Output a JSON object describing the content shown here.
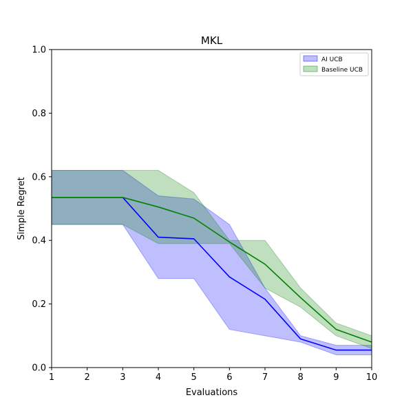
{
  "chart_data": {
    "type": "area",
    "title": "MKL",
    "xlabel": "Evaluations",
    "ylabel": "Simple Regret",
    "xlim": [
      1,
      10
    ],
    "ylim": [
      0,
      1.0
    ],
    "x": [
      1,
      2,
      3,
      4,
      5,
      6,
      7,
      8,
      9,
      10
    ],
    "xticks": [
      "1",
      "2",
      "3",
      "4",
      "5",
      "6",
      "7",
      "8",
      "9",
      "10"
    ],
    "yticks": [
      {
        "value": 0.0,
        "label": "0.0"
      },
      {
        "value": 0.2,
        "label": "0.2"
      },
      {
        "value": 0.4,
        "label": "0.4"
      },
      {
        "value": 0.6,
        "label": "0.6"
      },
      {
        "value": 0.8,
        "label": "0.8"
      },
      {
        "value": 1.0,
        "label": "1.0"
      }
    ],
    "grid": false,
    "legend_position": "top-right",
    "series": [
      {
        "name": "AI UCB",
        "line_color": "#0000ff",
        "fill_color": "#0000ff",
        "mean": [
          0.535,
          0.535,
          0.535,
          0.41,
          0.405,
          0.285,
          0.215,
          0.09,
          0.055,
          0.055
        ],
        "lower": [
          0.45,
          0.45,
          0.45,
          0.28,
          0.28,
          0.12,
          0.1,
          0.08,
          0.04,
          0.04
        ],
        "upper": [
          0.62,
          0.62,
          0.62,
          0.54,
          0.53,
          0.45,
          0.25,
          0.1,
          0.07,
          0.07
        ]
      },
      {
        "name": "Baseline UCB",
        "line_color": "#008000",
        "fill_color": "#008000",
        "mean": [
          0.535,
          0.535,
          0.535,
          0.505,
          0.47,
          0.395,
          0.325,
          0.22,
          0.12,
          0.08
        ],
        "lower": [
          0.45,
          0.45,
          0.45,
          0.39,
          0.39,
          0.39,
          0.25,
          0.19,
          0.1,
          0.06
        ],
        "upper": [
          0.62,
          0.62,
          0.62,
          0.62,
          0.55,
          0.4,
          0.4,
          0.25,
          0.14,
          0.1
        ]
      }
    ]
  }
}
